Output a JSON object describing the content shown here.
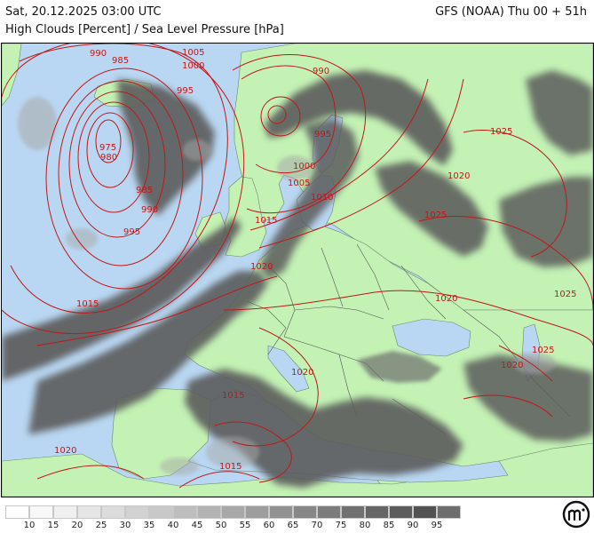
{
  "header": {
    "date_text": "Sat, 20.12.2025 03:00 UTC",
    "model_text": "GFS (NOAA) Thu 00 + 51h",
    "subtitle": "High Clouds [Percent] / Sea Level Pressure [hPa]"
  },
  "colors": {
    "sea": "#b9d7f2",
    "land": "#c3f2b4",
    "cloud_dense": "#5c5c5c",
    "cloud_light": "#a8a8a8",
    "isobar": "#c01818",
    "border": "#555555"
  },
  "isobar_labels": [
    {
      "text": "990"
    },
    {
      "text": "985"
    },
    {
      "text": "1005"
    },
    {
      "text": "1000"
    },
    {
      "text": "995"
    },
    {
      "text": "975"
    },
    {
      "text": "980"
    },
    {
      "text": "985"
    },
    {
      "text": "990"
    },
    {
      "text": "995"
    },
    {
      "text": "1015"
    },
    {
      "text": "990"
    },
    {
      "text": "995"
    },
    {
      "text": "1000"
    },
    {
      "text": "1005"
    },
    {
      "text": "1010"
    },
    {
      "text": "1015"
    },
    {
      "text": "1020"
    },
    {
      "text": "1025"
    },
    {
      "text": "1020"
    },
    {
      "text": "1025"
    },
    {
      "text": "1025"
    },
    {
      "text": "1020"
    },
    {
      "text": "1025"
    },
    {
      "text": "1020"
    },
    {
      "text": "1020"
    },
    {
      "text": "1015"
    },
    {
      "text": "1020"
    },
    {
      "text": "1015"
    }
  ],
  "legend": {
    "labels": [
      "10",
      "15",
      "20",
      "25",
      "30",
      "35",
      "40",
      "45",
      "50",
      "55",
      "60",
      "65",
      "70",
      "75",
      "80",
      "85",
      "90",
      "95"
    ],
    "colors": [
      "#ffffff",
      "#f8f8f8",
      "#f0f0f0",
      "#e6e6e6",
      "#dcdcdc",
      "#d2d2d2",
      "#c8c8c8",
      "#bebebe",
      "#b3b3b3",
      "#a8a8a8",
      "#9d9d9d",
      "#929292",
      "#878787",
      "#7c7c7c",
      "#717171",
      "#666666",
      "#5c5c5c",
      "#525252",
      "#6e6e6e"
    ]
  },
  "logo": {
    "icon": "meteologix-logo-icon"
  }
}
